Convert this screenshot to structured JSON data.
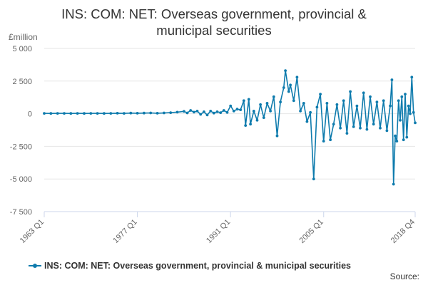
{
  "title_line1": "INS: COM: NET: Overseas government, provincial &",
  "title_line2": "municipal securities",
  "unit_label": "£million",
  "legend_label": "INS: COM: NET: Overseas government, provincial & municipal securities",
  "source_label": "Source:",
  "colors": {
    "series": "#0e7bad",
    "grid": "#e6e6e6",
    "axis": "#ccd6eb"
  },
  "chart_data": {
    "type": "line",
    "title": "INS: COM: NET: Overseas government, provincial & municipal securities",
    "ylabel": "£million",
    "xlabel": "",
    "ylim": [
      -7500,
      5000
    ],
    "yticks": [
      5000,
      2500,
      0,
      -2500,
      -5000,
      -7500
    ],
    "ytick_labels": [
      "5 000",
      "2 500",
      "0",
      "-2 500",
      "-5 000",
      "-7 500"
    ],
    "x_start": "1963 Q1",
    "x_end": "2018 Q4",
    "xtick_labels": [
      "1963 Q1",
      "1977 Q1",
      "1991 Q1",
      "2005 Q1",
      "2018 Q4"
    ],
    "grid": true,
    "legend_position": "bottom",
    "series": [
      {
        "name": "INS: COM: NET: Overseas government, provincial & municipal securities",
        "points": [
          [
            "1963 Q1",
            30
          ],
          [
            "1964 Q1",
            20
          ],
          [
            "1965 Q1",
            30
          ],
          [
            "1966 Q1",
            25
          ],
          [
            "1967 Q1",
            20
          ],
          [
            "1968 Q1",
            30
          ],
          [
            "1969 Q1",
            20
          ],
          [
            "1970 Q1",
            25
          ],
          [
            "1971 Q1",
            30
          ],
          [
            "1972 Q1",
            20
          ],
          [
            "1973 Q1",
            30
          ],
          [
            "1974 Q1",
            40
          ],
          [
            "1975 Q1",
            30
          ],
          [
            "1976 Q1",
            50
          ],
          [
            "1977 Q1",
            40
          ],
          [
            "1978 Q1",
            50
          ],
          [
            "1979 Q1",
            60
          ],
          [
            "1980 Q1",
            40
          ],
          [
            "1981 Q1",
            60
          ],
          [
            "1982 Q1",
            80
          ],
          [
            "1983 Q1",
            120
          ],
          [
            "1984 Q1",
            180
          ],
          [
            "1984 Q3",
            60
          ],
          [
            "1985 Q1",
            250
          ],
          [
            "1985 Q3",
            120
          ],
          [
            "1986 Q1",
            200
          ],
          [
            "1986 Q3",
            -50
          ],
          [
            "1987 Q1",
            150
          ],
          [
            "1987 Q3",
            -100
          ],
          [
            "1988 Q1",
            200
          ],
          [
            "1988 Q3",
            50
          ],
          [
            "1989 Q1",
            150
          ],
          [
            "1989 Q3",
            80
          ],
          [
            "1990 Q1",
            250
          ],
          [
            "1990 Q3",
            100
          ],
          [
            "1991 Q1",
            600
          ],
          [
            "1991 Q3",
            200
          ],
          [
            "1992 Q1",
            350
          ],
          [
            "1992 Q3",
            300
          ],
          [
            "1993 Q1",
            1000
          ],
          [
            "1993 Q2",
            -900
          ],
          [
            "1993 Q4",
            1100
          ],
          [
            "1994 Q1",
            -800
          ],
          [
            "1994 Q3",
            200
          ],
          [
            "1995 Q1",
            -500
          ],
          [
            "1995 Q3",
            700
          ],
          [
            "1996 Q1",
            -300
          ],
          [
            "1996 Q3",
            800
          ],
          [
            "1997 Q1",
            200
          ],
          [
            "1997 Q3",
            1300
          ],
          [
            "1998 Q1",
            -1700
          ],
          [
            "1998 Q3",
            900
          ],
          [
            "1999 Q1",
            2000
          ],
          [
            "1999 Q2",
            3300
          ],
          [
            "1999 Q4",
            1700
          ],
          [
            "2000 Q1",
            2200
          ],
          [
            "2000 Q3",
            1000
          ],
          [
            "2001 Q1",
            2800
          ],
          [
            "2001 Q3",
            200
          ],
          [
            "2002 Q1",
            800
          ],
          [
            "2002 Q3",
            -600
          ],
          [
            "2003 Q1",
            100
          ],
          [
            "2003 Q3",
            -5000
          ],
          [
            "2004 Q1",
            500
          ],
          [
            "2004 Q3",
            1500
          ],
          [
            "2005 Q1",
            -2100
          ],
          [
            "2005 Q3",
            800
          ],
          [
            "2006 Q1",
            -2000
          ],
          [
            "2006 Q3",
            -800
          ],
          [
            "2007 Q1",
            700
          ],
          [
            "2007 Q3",
            -1100
          ],
          [
            "2008 Q1",
            1000
          ],
          [
            "2008 Q3",
            -1500
          ],
          [
            "2009 Q1",
            1700
          ],
          [
            "2009 Q3",
            -1000
          ],
          [
            "2010 Q1",
            600
          ],
          [
            "2010 Q3",
            -1100
          ],
          [
            "2011 Q1",
            1600
          ],
          [
            "2011 Q3",
            -1200
          ],
          [
            "2012 Q1",
            1300
          ],
          [
            "2012 Q3",
            -800
          ],
          [
            "2013 Q1",
            900
          ],
          [
            "2013 Q3",
            -1100
          ],
          [
            "2014 Q1",
            1000
          ],
          [
            "2014 Q3",
            -1300
          ],
          [
            "2015 Q1",
            600
          ],
          [
            "2015 Q2",
            2600
          ],
          [
            "2015 Q3",
            -5400
          ],
          [
            "2015 Q4",
            -1700
          ],
          [
            "2016 Q1",
            -2100
          ],
          [
            "2016 Q2",
            1000
          ],
          [
            "2016 Q3",
            -500
          ],
          [
            "2016 Q4",
            1300
          ],
          [
            "2017 Q1",
            -2000
          ],
          [
            "2017 Q2",
            1500
          ],
          [
            "2017 Q3",
            -1800
          ],
          [
            "2017 Q4",
            600
          ],
          [
            "2018 Q1",
            0
          ],
          [
            "2018 Q2",
            2800
          ],
          [
            "2018 Q3",
            100
          ],
          [
            "2018 Q4",
            -700
          ]
        ]
      }
    ]
  }
}
